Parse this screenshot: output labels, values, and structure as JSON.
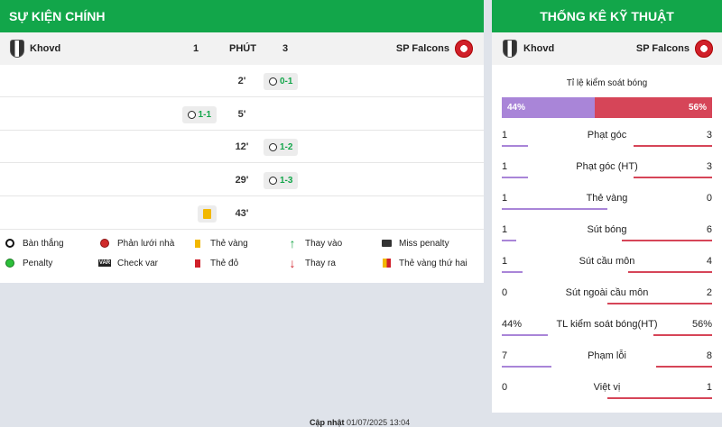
{
  "left_panel": {
    "title": "SỰ KIỆN CHÍNH",
    "home_team": "Khovd",
    "home_score": "1",
    "minute_label": "PHÚT",
    "away_score": "3",
    "away_team": "SP Falcons",
    "events": [
      {
        "minute": "2'",
        "side": "away",
        "type": "goal",
        "score": "0-1"
      },
      {
        "minute": "5'",
        "side": "home",
        "type": "goal",
        "score": "1-1"
      },
      {
        "minute": "12'",
        "side": "away",
        "type": "goal",
        "score": "1-2"
      },
      {
        "minute": "29'",
        "side": "away",
        "type": "goal",
        "score": "1-3"
      },
      {
        "minute": "43'",
        "side": "home",
        "type": "yellow-card",
        "score": ""
      }
    ],
    "legend": {
      "goal": "Bàn thắng",
      "own_goal": "Phản lưới nhà",
      "yellow_card": "Thẻ vàng",
      "sub_in": "Thay vào",
      "missed_penalty": "Miss penalty",
      "penalty": "Penalty",
      "check_var": "Check var",
      "red_card": "Thẻ đỏ",
      "sub_out": "Thay ra",
      "second_yellow": "Thẻ vàng thứ hai"
    }
  },
  "right_panel": {
    "title": "THỐNG KÊ KỸ THUẬT",
    "home_team": "Khovd",
    "away_team": "SP Falcons",
    "possession_title": "Tỉ lệ kiểm soát bóng",
    "possession_home": "44%",
    "possession_away": "56%",
    "possession_home_fraction": 0.44,
    "stats": [
      {
        "name": "Phạt góc",
        "home": "1",
        "away": "3",
        "home_frac": 0.25,
        "away_frac": 0.75
      },
      {
        "name": "Phạt góc (HT)",
        "home": "1",
        "away": "3",
        "home_frac": 0.25,
        "away_frac": 0.75
      },
      {
        "name": "Thẻ vàng",
        "home": "1",
        "away": "0",
        "home_frac": 1.0,
        "away_frac": 0.0
      },
      {
        "name": "Sút bóng",
        "home": "1",
        "away": "6",
        "home_frac": 0.14,
        "away_frac": 0.86
      },
      {
        "name": "Sút cầu môn",
        "home": "1",
        "away": "4",
        "home_frac": 0.2,
        "away_frac": 0.8
      },
      {
        "name": "Sút ngoài cầu môn",
        "home": "0",
        "away": "2",
        "home_frac": 0.0,
        "away_frac": 1.0
      },
      {
        "name": "TL kiểm soát bóng(HT)",
        "home": "44%",
        "away": "56%",
        "home_frac": 0.44,
        "away_frac": 0.56
      },
      {
        "name": "Phạm lỗi",
        "home": "7",
        "away": "8",
        "home_frac": 0.47,
        "away_frac": 0.53
      },
      {
        "name": "Việt vị",
        "home": "0",
        "away": "1",
        "home_frac": 0.0,
        "away_frac": 1.0
      }
    ]
  },
  "footer": {
    "label": "Cập nhật",
    "timestamp": "01/07/2025 13:04"
  },
  "colors": {
    "header_green": "#12a64a",
    "home_purple": "#a985d8",
    "away_red": "#d64558"
  },
  "icons": {
    "goal": "soccer-ball-icon",
    "yellow": "yellow-card-icon",
    "red": "red-card-icon",
    "sub_in": "arrow-up-icon",
    "sub_out": "arrow-down-icon"
  }
}
